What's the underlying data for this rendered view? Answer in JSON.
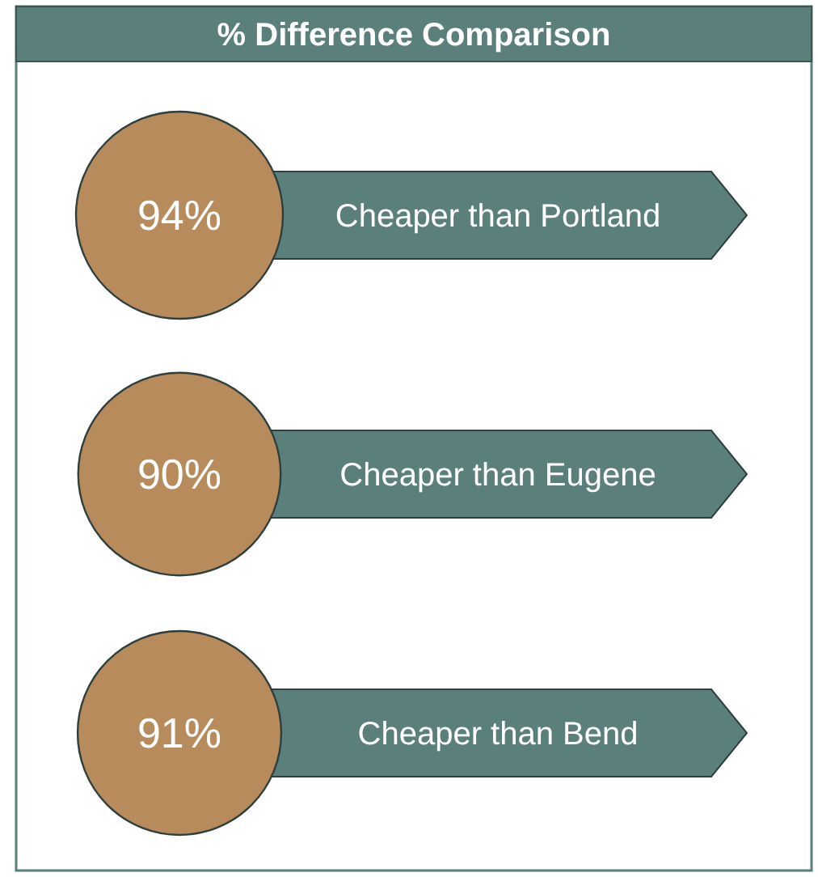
{
  "chart_data": {
    "type": "other",
    "title": "% Difference Comparison",
    "categories": [
      "Cheaper than Portland",
      "Cheaper than Eugene",
      "Cheaper than Bend"
    ],
    "color": "#5b7f7b",
    "series": [
      {
        "color": "#b78b5c",
        "values": [
          94,
          90,
          91
        ],
        "value_labels": [
          "94%",
          "90%",
          "91%"
        ]
      }
    ]
  }
}
